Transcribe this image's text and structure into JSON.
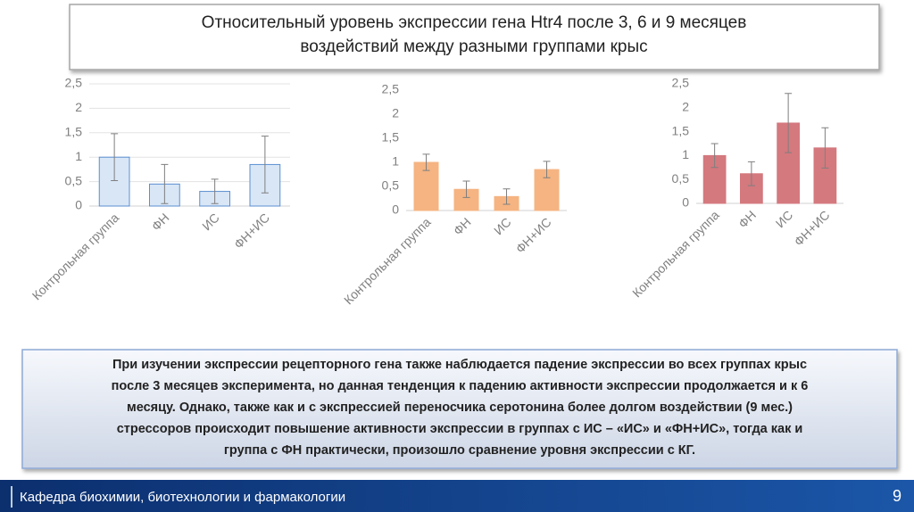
{
  "slide_title": [
    "Относительный уровень экспрессии гена Htr4 после 3, 6 и 9 месяцев",
    "воздействий между разными группами крыс"
  ],
  "chart_data": [
    {
      "type": "bar",
      "categories": [
        "Контрольная группа",
        "ФН",
        "ИС",
        "ФН+ИС"
      ],
      "values": [
        1.0,
        0.45,
        0.3,
        0.85
      ],
      "errors": [
        0.48,
        0.4,
        0.25,
        0.58
      ],
      "color": "#d9e6f6",
      "edge_color": "#5b8fd0",
      "ylim": [
        0,
        2.5
      ],
      "yticks": [
        0,
        {
          "value": 0.5,
          "label": "0,5"
        },
        1,
        {
          "value": 1.5,
          "label": "1,5"
        },
        2,
        {
          "value": 2.5,
          "label": "2,5"
        }
      ],
      "grid": true
    },
    {
      "type": "bar",
      "categories": [
        "Контрольная группа",
        "ФН",
        "ИС",
        "ФН+ИС"
      ],
      "values": [
        1.0,
        0.44,
        0.29,
        0.85
      ],
      "errors": [
        0.17,
        0.17,
        0.16,
        0.17
      ],
      "color": "#f5b482",
      "edge_color": "#f5b482",
      "ylim": [
        0,
        2.5
      ],
      "yticks": [
        0,
        {
          "value": 0.5,
          "label": "0,5"
        },
        1,
        {
          "value": 1.5,
          "label": "1,5"
        },
        2,
        {
          "value": 2.5,
          "label": "2,5"
        }
      ],
      "grid": false
    },
    {
      "type": "bar",
      "categories": [
        "Контрольная группа",
        "ФН",
        "ИС",
        "ФН+ИС"
      ],
      "values": [
        1.0,
        0.62,
        1.68,
        1.16
      ],
      "errors": [
        0.25,
        0.25,
        0.62,
        0.42
      ],
      "color": "#d4797e",
      "edge_color": "#d4797e",
      "ylim": [
        0,
        2.5
      ],
      "yticks": [
        0,
        {
          "value": 0.5,
          "label": "0,5"
        },
        1,
        {
          "value": 1.5,
          "label": "1,5"
        },
        2,
        {
          "value": 2.5,
          "label": "2,5"
        }
      ],
      "grid": false
    }
  ],
  "summary": [
    "При изучении экспрессии рецепторного гена также наблюдается падение экспрессии во всех группах крыс",
    "после 3 месяцев эксперимента, но данная тенденция к падению активности экспрессии продолжается и к 6",
    "месяцу.  Однако, также как и с экспрессией переносчика серотонина более долгом воздействии (9 мес.)",
    "стрессоров происходит повышение активности экспрессии в группах с ИС – «ИС» и «ФН+ИС», тогда как и",
    "группа с ФН практически, произошло сравнение уровня экспрессии с КГ."
  ],
  "footer": "Кафедра биохимии, биотехнологии и фармакологии",
  "page_number": "9"
}
